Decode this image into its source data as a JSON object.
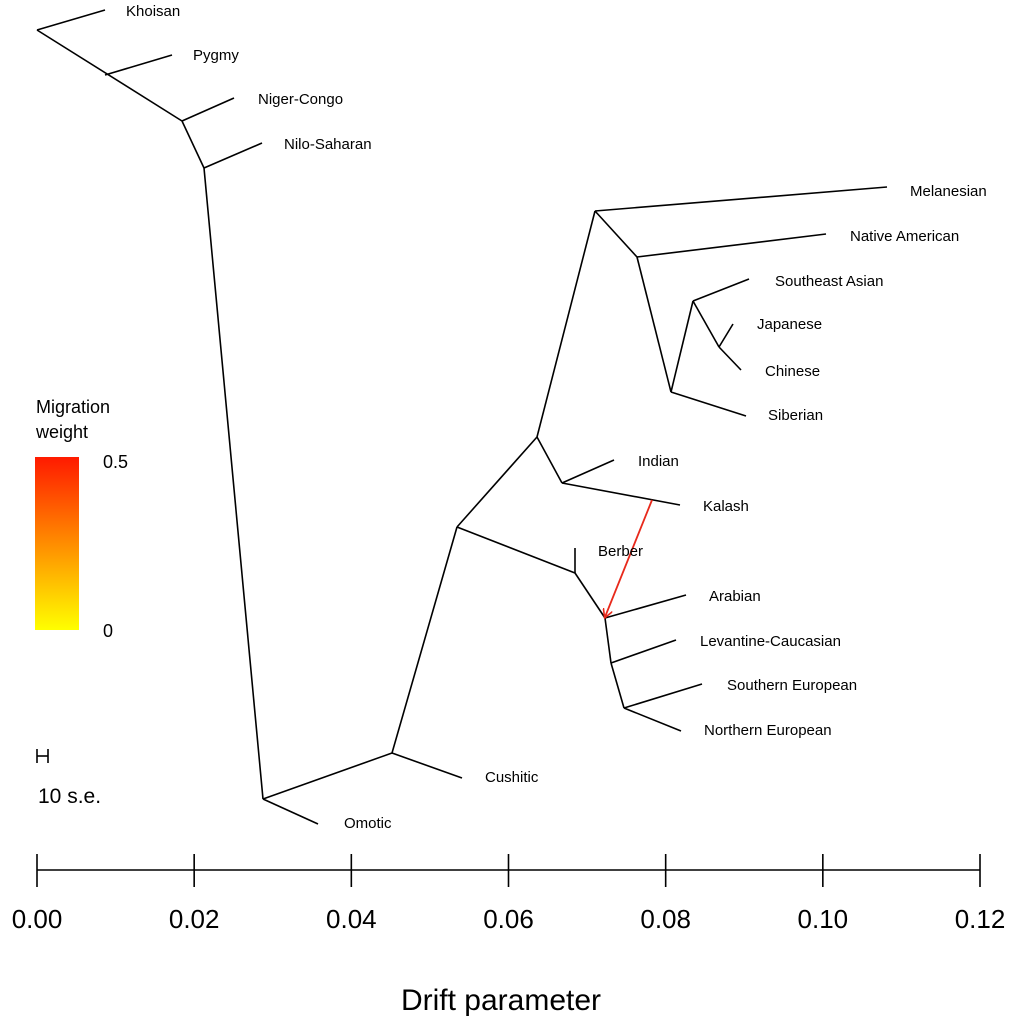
{
  "legend": {
    "title_line1": "Migration",
    "title_line2": "weight",
    "max_label": "0.5",
    "min_label": "0",
    "color_max": "#ff1a00",
    "color_min": "#ffff00"
  },
  "scale_bar": {
    "label": "10 s.e."
  },
  "axis": {
    "title": "Drift parameter",
    "ticks": [
      "0.00",
      "0.02",
      "0.04",
      "0.06",
      "0.08",
      "0.10",
      "0.12"
    ]
  },
  "leaves": {
    "khoisan": "Khoisan",
    "pygmy": "Pygmy",
    "niger_congo": "Niger-Congo",
    "nilo_saharan": "Nilo-Saharan",
    "melanesian": "Melanesian",
    "native_american": "Native American",
    "southeast_asian": "Southeast Asian",
    "japanese": "Japanese",
    "chinese": "Chinese",
    "siberian": "Siberian",
    "indian": "Indian",
    "kalash": "Kalash",
    "berber": "Berber",
    "arabian": "Arabian",
    "levantine_caucasian": "Levantine-Caucasian",
    "southern_european": "Southern European",
    "northern_european": "Northern European",
    "cushitic": "Cushitic",
    "omotic": "Omotic"
  },
  "migration_edge": {
    "color": "#e8291b",
    "weight": 0.5
  }
}
